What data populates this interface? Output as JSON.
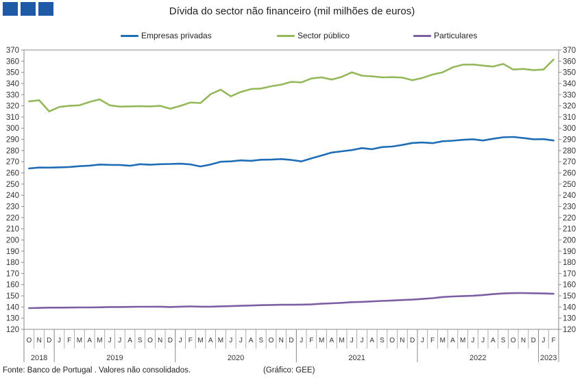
{
  "logo": {
    "name": "gee-logo"
  },
  "chart_data": {
    "type": "line",
    "title": "Dívida do sector não financeiro (mil milhões de euros)",
    "xlabel": "",
    "ylabel": "",
    "ylim": [
      120,
      370
    ],
    "y_ticks": [
      120,
      130,
      140,
      150,
      160,
      170,
      180,
      190,
      200,
      210,
      220,
      230,
      240,
      250,
      260,
      270,
      280,
      290,
      300,
      310,
      320,
      330,
      340,
      350,
      360,
      370
    ],
    "x": [
      "2018-10",
      "2018-11",
      "2018-12",
      "2019-01",
      "2019-02",
      "2019-03",
      "2019-04",
      "2019-05",
      "2019-06",
      "2019-07",
      "2019-08",
      "2019-09",
      "2019-10",
      "2019-11",
      "2019-12",
      "2020-01",
      "2020-02",
      "2020-03",
      "2020-04",
      "2020-05",
      "2020-06",
      "2020-07",
      "2020-08",
      "2020-09",
      "2020-10",
      "2020-11",
      "2020-12",
      "2021-01",
      "2021-02",
      "2021-03",
      "2021-04",
      "2021-05",
      "2021-06",
      "2021-07",
      "2021-08",
      "2021-09",
      "2021-10",
      "2021-11",
      "2021-12",
      "2022-01",
      "2022-02",
      "2022-03",
      "2022-04",
      "2022-05",
      "2022-06",
      "2022-07",
      "2022-08",
      "2022-09",
      "2022-10",
      "2022-11",
      "2022-12",
      "2023-01",
      "2023-02"
    ],
    "month_labels": [
      "O",
      "N",
      "D",
      "J",
      "F",
      "M",
      "A",
      "M",
      "J",
      "J",
      "A",
      "S",
      "O",
      "N",
      "D",
      "J",
      "F",
      "M",
      "A",
      "M",
      "J",
      "J",
      "A",
      "S",
      "O",
      "N",
      "D",
      "J",
      "F",
      "M",
      "A",
      "M",
      "J",
      "J",
      "A",
      "S",
      "O",
      "N",
      "D",
      "J",
      "F",
      "M",
      "A",
      "M",
      "J",
      "J",
      "A",
      "S",
      "O",
      "N",
      "D",
      "J",
      "F"
    ],
    "years": [
      {
        "label": "2018",
        "start": 0,
        "end": 2
      },
      {
        "label": "2019",
        "start": 3,
        "end": 14
      },
      {
        "label": "2020",
        "start": 15,
        "end": 26
      },
      {
        "label": "2021",
        "start": 27,
        "end": 38
      },
      {
        "label": "2022",
        "start": 39,
        "end": 50
      },
      {
        "label": "2023",
        "start": 51,
        "end": 52
      }
    ],
    "series": [
      {
        "name": "Empresas privadas",
        "color": "#1f6db5",
        "values": [
          264,
          264.8,
          264.7,
          265,
          265.3,
          266,
          266.5,
          267.5,
          267.2,
          267.1,
          266.4,
          267.8,
          267.3,
          267.8,
          268,
          268.2,
          267.6,
          265.8,
          267.5,
          270,
          270.3,
          271.2,
          270.8,
          271.8,
          271.9,
          272.4,
          271.6,
          270.3,
          273,
          275.6,
          278.2,
          279.3,
          280.4,
          282.2,
          281.2,
          283.1,
          283.6,
          285,
          286.8,
          287.2,
          286.6,
          288.3,
          288.8,
          289.6,
          290.1,
          289,
          290.5,
          291.9,
          292.2,
          291.2,
          290.1,
          290.2,
          289
        ]
      },
      {
        "name": "Sector público",
        "color": "#94b85a",
        "values": [
          324,
          325,
          315,
          319,
          320,
          320.5,
          323.5,
          325.8,
          320.5,
          319.3,
          319.5,
          319.7,
          319.5,
          320,
          317.5,
          320,
          323,
          322.5,
          330.5,
          334.5,
          328.5,
          332.5,
          335,
          335.5,
          337.5,
          339,
          341.5,
          341,
          344.5,
          345.5,
          343.5,
          346,
          350,
          347,
          346.5,
          345.5,
          345.7,
          345.3,
          343,
          345,
          348,
          350,
          354.5,
          356.8,
          357,
          356,
          355.2,
          357.5,
          352.5,
          353,
          352,
          352.5,
          361.5
        ]
      },
      {
        "name": "Particulares",
        "color": "#7c5fa3",
        "values": [
          139,
          139.2,
          139.4,
          139.4,
          139.5,
          139.6,
          139.6,
          139.7,
          140,
          140,
          140.1,
          140.2,
          140.2,
          140.3,
          140,
          140.3,
          140.5,
          140.3,
          140.3,
          140.6,
          140.8,
          141.1,
          141.3,
          141.6,
          141.8,
          142,
          142,
          142.1,
          142.3,
          142.9,
          143.3,
          143.7,
          144.3,
          144.6,
          145,
          145.4,
          145.8,
          146.2,
          146.6,
          147.2,
          147.9,
          148.9,
          149.4,
          149.8,
          150.1,
          150.7,
          151.5,
          152.1,
          152.4,
          152.5,
          152.3,
          152.1,
          151.8
        ]
      }
    ]
  },
  "footer": {
    "source": "Fonte: Banco de Portugal . Valores não consolidados.",
    "credit": "(Gráfico: GEE)"
  }
}
